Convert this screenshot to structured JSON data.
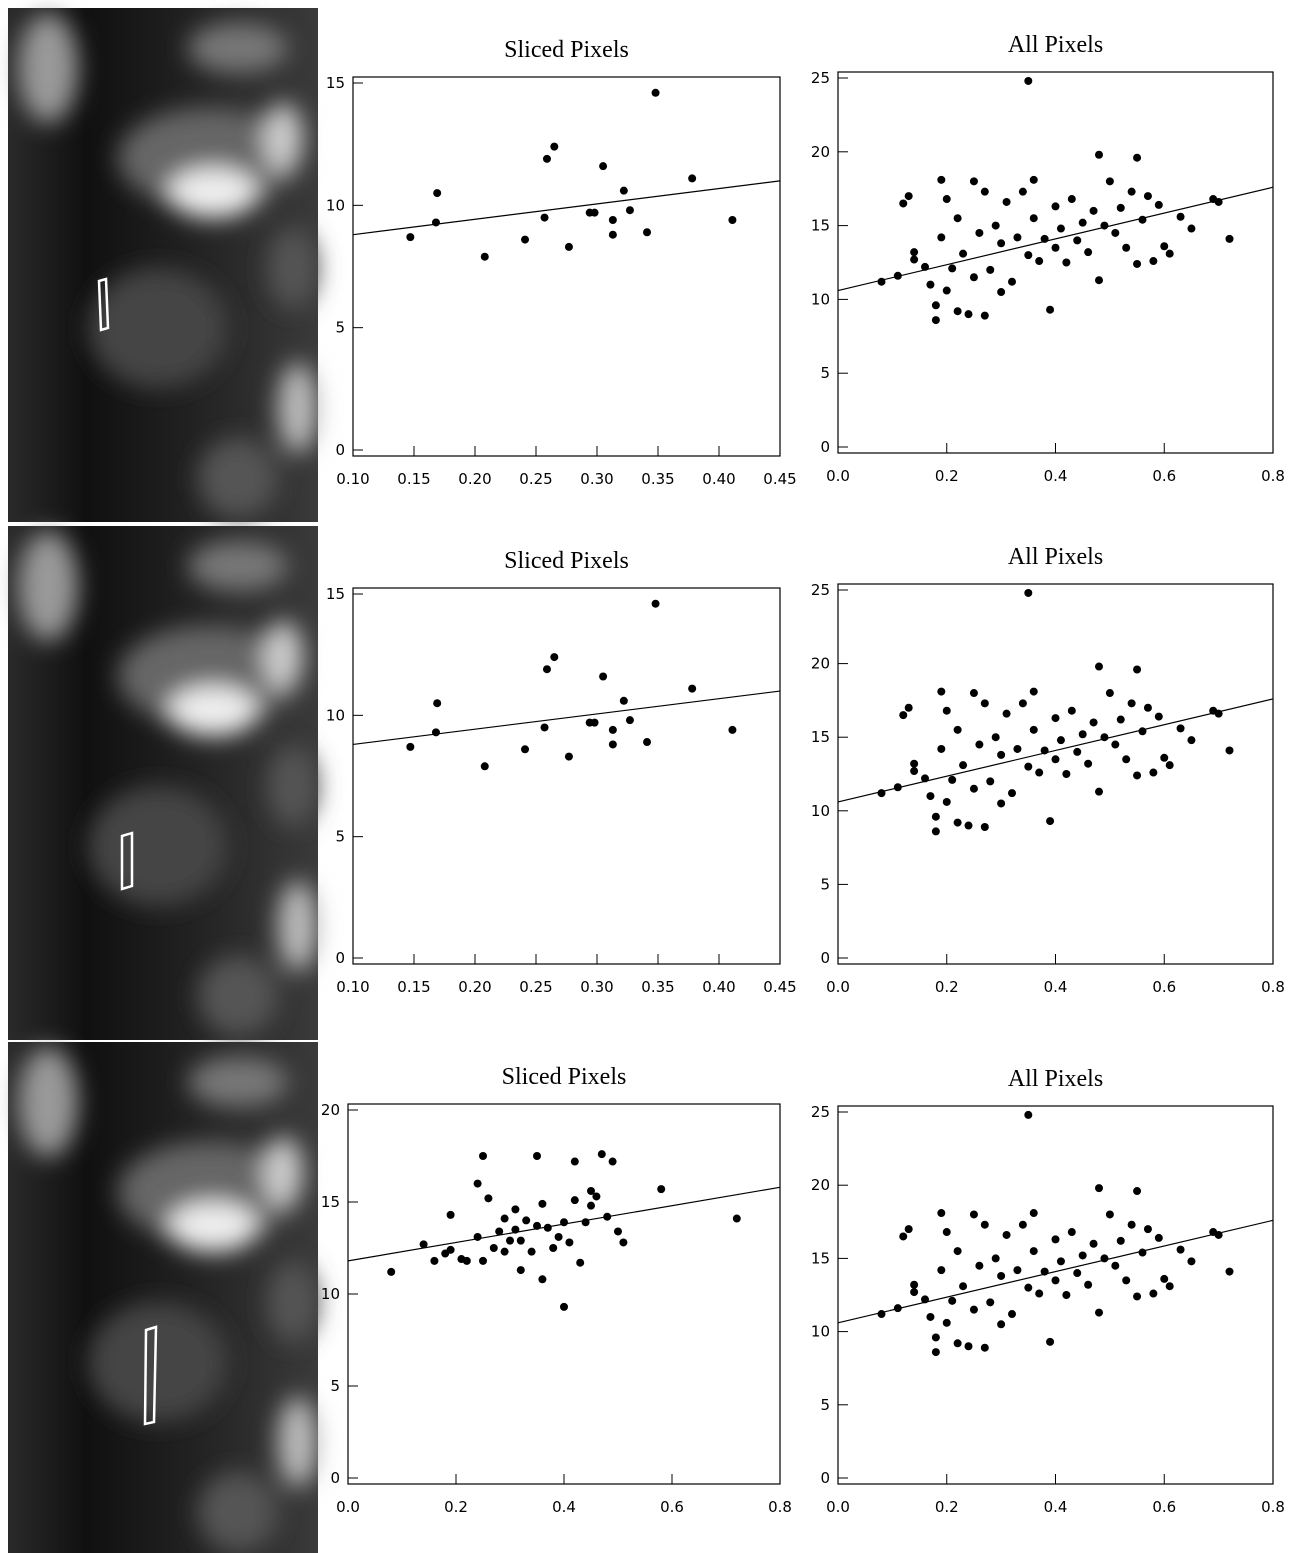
{
  "chart_data": [
    {
      "type": "scatter",
      "title": "Sliced Pixels",
      "xlim": [
        0.1,
        0.45
      ],
      "ylim": [
        0,
        15
      ],
      "xticks": [
        {
          "value": 0.1,
          "label": "0.10"
        },
        0.15,
        {
          "value": 0.2,
          "label": "0.20"
        },
        0.25,
        {
          "value": 0.3,
          "label": "0.30"
        },
        0.35,
        {
          "value": 0.4,
          "label": "0.40"
        },
        0.45
      ],
      "yticks": [
        0,
        5,
        10,
        15
      ],
      "series": [
        {
          "type": "scatter",
          "color": "#000000",
          "x": [
            0.147,
            0.168,
            0.169,
            0.208,
            0.241,
            0.257,
            0.259,
            0.265,
            0.277,
            0.294,
            0.298,
            0.305,
            0.313,
            0.313,
            0.322,
            0.327,
            0.341,
            0.348,
            0.378,
            0.411
          ],
          "values": [
            8.7,
            9.3,
            10.5,
            7.9,
            8.6,
            9.5,
            11.9,
            12.4,
            8.3,
            9.7,
            9.7,
            11.6,
            8.8,
            9.4,
            10.6,
            9.8,
            8.9,
            14.6,
            11.1,
            9.4
          ]
        },
        {
          "type": "line",
          "color": "#000000",
          "x": [
            0.1,
            0.45
          ],
          "values": [
            8.8,
            11.0
          ]
        }
      ]
    },
    {
      "type": "scatter",
      "title": "All Pixels",
      "xlim": [
        0,
        0.8
      ],
      "ylim": [
        0,
        25
      ],
      "xticks": [
        {
          "value": 0,
          "label": "0.0"
        },
        0.2,
        0.4,
        0.6,
        0.8
      ],
      "yticks": [
        0,
        5,
        10,
        15,
        20,
        25
      ],
      "series": [
        {
          "type": "scatter",
          "color": "#000000",
          "x": [
            0.08,
            0.11,
            0.12,
            0.13,
            0.14,
            0.14,
            0.16,
            0.17,
            0.18,
            0.18,
            0.19,
            0.19,
            0.2,
            0.2,
            0.21,
            0.22,
            0.22,
            0.23,
            0.24,
            0.25,
            0.25,
            0.26,
            0.27,
            0.27,
            0.28,
            0.29,
            0.3,
            0.3,
            0.31,
            0.32,
            0.33,
            0.34,
            0.35,
            0.35,
            0.36,
            0.36,
            0.37,
            0.38,
            0.39,
            0.4,
            0.4,
            0.41,
            0.42,
            0.43,
            0.44,
            0.45,
            0.46,
            0.47,
            0.48,
            0.48,
            0.49,
            0.5,
            0.51,
            0.52,
            0.53,
            0.54,
            0.55,
            0.55,
            0.56,
            0.57,
            0.58,
            0.59,
            0.6,
            0.61,
            0.63,
            0.65,
            0.69,
            0.7,
            0.72
          ],
          "values": [
            11.2,
            11.6,
            16.5,
            17.0,
            13.2,
            12.7,
            12.2,
            11.0,
            9.6,
            8.6,
            18.1,
            14.2,
            10.6,
            16.8,
            12.1,
            9.2,
            15.5,
            13.1,
            9.0,
            18.0,
            11.5,
            14.5,
            8.9,
            17.3,
            12.0,
            15.0,
            10.5,
            13.8,
            16.6,
            11.2,
            14.2,
            17.3,
            24.8,
            13.0,
            18.1,
            15.5,
            12.6,
            14.1,
            9.3,
            16.3,
            13.5,
            14.8,
            12.5,
            16.8,
            14.0,
            15.2,
            13.2,
            16.0,
            19.8,
            11.3,
            15.0,
            18.0,
            14.5,
            16.2,
            13.5,
            17.3,
            19.6,
            12.4,
            15.4,
            17.0,
            12.6,
            16.4,
            13.6,
            13.1,
            15.6,
            14.8,
            16.8,
            16.6,
            14.1
          ]
        },
        {
          "type": "line",
          "color": "#000000",
          "x": [
            0,
            0.8
          ],
          "values": [
            10.6,
            17.6
          ]
        }
      ]
    },
    {
      "type": "scatter",
      "title": "Sliced Pixels",
      "xlim": [
        0.1,
        0.45
      ],
      "ylim": [
        0,
        15
      ],
      "xticks": [
        {
          "value": 0.1,
          "label": "0.10"
        },
        0.15,
        {
          "value": 0.2,
          "label": "0.20"
        },
        0.25,
        {
          "value": 0.3,
          "label": "0.30"
        },
        0.35,
        {
          "value": 0.4,
          "label": "0.40"
        },
        0.45
      ],
      "yticks": [
        0,
        5,
        10,
        15
      ],
      "series": [
        {
          "type": "scatter",
          "color": "#000000",
          "x": [
            0.147,
            0.168,
            0.169,
            0.208,
            0.241,
            0.257,
            0.259,
            0.265,
            0.277,
            0.294,
            0.298,
            0.305,
            0.313,
            0.313,
            0.322,
            0.327,
            0.341,
            0.348,
            0.378,
            0.411
          ],
          "values": [
            8.7,
            9.3,
            10.5,
            7.9,
            8.6,
            9.5,
            11.9,
            12.4,
            8.3,
            9.7,
            9.7,
            11.6,
            8.8,
            9.4,
            10.6,
            9.8,
            8.9,
            14.6,
            11.1,
            9.4
          ]
        },
        {
          "type": "line",
          "color": "#000000",
          "x": [
            0.1,
            0.45
          ],
          "values": [
            8.8,
            11.0
          ]
        }
      ]
    },
    {
      "type": "scatter",
      "title": "All Pixels",
      "xlim": [
        0,
        0.8
      ],
      "ylim": [
        0,
        25
      ],
      "xticks": [
        {
          "value": 0,
          "label": "0.0"
        },
        0.2,
        0.4,
        0.6,
        0.8
      ],
      "yticks": [
        0,
        5,
        10,
        15,
        20,
        25
      ],
      "series": [
        {
          "type": "scatter",
          "color": "#000000",
          "x": [
            0.08,
            0.11,
            0.12,
            0.13,
            0.14,
            0.14,
            0.16,
            0.17,
            0.18,
            0.18,
            0.19,
            0.19,
            0.2,
            0.2,
            0.21,
            0.22,
            0.22,
            0.23,
            0.24,
            0.25,
            0.25,
            0.26,
            0.27,
            0.27,
            0.28,
            0.29,
            0.3,
            0.3,
            0.31,
            0.32,
            0.33,
            0.34,
            0.35,
            0.35,
            0.36,
            0.36,
            0.37,
            0.38,
            0.39,
            0.4,
            0.4,
            0.41,
            0.42,
            0.43,
            0.44,
            0.45,
            0.46,
            0.47,
            0.48,
            0.48,
            0.49,
            0.5,
            0.51,
            0.52,
            0.53,
            0.54,
            0.55,
            0.55,
            0.56,
            0.57,
            0.58,
            0.59,
            0.6,
            0.61,
            0.63,
            0.65,
            0.69,
            0.7,
            0.72
          ],
          "values": [
            11.2,
            11.6,
            16.5,
            17.0,
            13.2,
            12.7,
            12.2,
            11.0,
            9.6,
            8.6,
            18.1,
            14.2,
            10.6,
            16.8,
            12.1,
            9.2,
            15.5,
            13.1,
            9.0,
            18.0,
            11.5,
            14.5,
            8.9,
            17.3,
            12.0,
            15.0,
            10.5,
            13.8,
            16.6,
            11.2,
            14.2,
            17.3,
            24.8,
            13.0,
            18.1,
            15.5,
            12.6,
            14.1,
            9.3,
            16.3,
            13.5,
            14.8,
            12.5,
            16.8,
            14.0,
            15.2,
            13.2,
            16.0,
            19.8,
            11.3,
            15.0,
            18.0,
            14.5,
            16.2,
            13.5,
            17.3,
            19.6,
            12.4,
            15.4,
            17.0,
            12.6,
            16.4,
            13.6,
            13.1,
            15.6,
            14.8,
            16.8,
            16.6,
            14.1
          ]
        },
        {
          "type": "line",
          "color": "#000000",
          "x": [
            0,
            0.8
          ],
          "values": [
            10.6,
            17.6
          ]
        }
      ]
    },
    {
      "type": "scatter",
      "title": "Sliced Pixels",
      "xlim": [
        0,
        0.8
      ],
      "ylim": [
        0,
        20
      ],
      "xticks": [
        {
          "value": 0,
          "label": "0.0"
        },
        0.2,
        0.4,
        0.6,
        0.8
      ],
      "yticks": [
        0,
        5,
        10,
        15,
        20
      ],
      "series": [
        {
          "type": "scatter",
          "color": "#000000",
          "x": [
            0.08,
            0.14,
            0.16,
            0.18,
            0.19,
            0.19,
            0.21,
            0.22,
            0.24,
            0.24,
            0.25,
            0.25,
            0.26,
            0.27,
            0.28,
            0.29,
            0.29,
            0.3,
            0.31,
            0.31,
            0.32,
            0.32,
            0.33,
            0.34,
            0.35,
            0.35,
            0.36,
            0.36,
            0.37,
            0.38,
            0.39,
            0.4,
            0.4,
            0.41,
            0.42,
            0.42,
            0.43,
            0.44,
            0.45,
            0.45,
            0.46,
            0.47,
            0.48,
            0.49,
            0.5,
            0.51,
            0.58,
            0.72
          ],
          "values": [
            11.2,
            12.7,
            11.8,
            12.2,
            14.3,
            12.4,
            11.9,
            11.8,
            16.0,
            13.1,
            17.5,
            11.8,
            15.2,
            12.5,
            13.4,
            12.3,
            14.1,
            12.9,
            14.6,
            13.5,
            12.9,
            11.3,
            14.0,
            12.3,
            17.5,
            13.7,
            10.8,
            14.9,
            13.6,
            12.5,
            13.1,
            9.3,
            13.9,
            12.8,
            17.2,
            15.1,
            11.7,
            13.9,
            14.8,
            15.6,
            15.3,
            17.6,
            14.2,
            17.2,
            13.4,
            12.8,
            15.7,
            14.1
          ]
        },
        {
          "type": "line",
          "color": "#000000",
          "x": [
            0,
            0.8
          ],
          "values": [
            11.8,
            15.8
          ]
        }
      ]
    },
    {
      "type": "scatter",
      "title": "All Pixels",
      "xlim": [
        0,
        0.8
      ],
      "ylim": [
        0,
        25
      ],
      "xticks": [
        {
          "value": 0,
          "label": "0.0"
        },
        0.2,
        0.4,
        0.6,
        0.8
      ],
      "yticks": [
        0,
        5,
        10,
        15,
        20,
        25
      ],
      "series": [
        {
          "type": "scatter",
          "color": "#000000",
          "x": [
            0.08,
            0.11,
            0.12,
            0.13,
            0.14,
            0.14,
            0.16,
            0.17,
            0.18,
            0.18,
            0.19,
            0.19,
            0.2,
            0.2,
            0.21,
            0.22,
            0.22,
            0.23,
            0.24,
            0.25,
            0.25,
            0.26,
            0.27,
            0.27,
            0.28,
            0.29,
            0.3,
            0.3,
            0.31,
            0.32,
            0.33,
            0.34,
            0.35,
            0.35,
            0.36,
            0.36,
            0.37,
            0.38,
            0.39,
            0.4,
            0.4,
            0.41,
            0.42,
            0.43,
            0.44,
            0.45,
            0.46,
            0.47,
            0.48,
            0.48,
            0.49,
            0.5,
            0.51,
            0.52,
            0.53,
            0.54,
            0.55,
            0.55,
            0.56,
            0.57,
            0.58,
            0.59,
            0.6,
            0.61,
            0.63,
            0.65,
            0.69,
            0.7,
            0.72
          ],
          "values": [
            11.2,
            11.6,
            16.5,
            17.0,
            13.2,
            12.7,
            12.2,
            11.0,
            9.6,
            8.6,
            18.1,
            14.2,
            10.6,
            16.8,
            12.1,
            9.2,
            15.5,
            13.1,
            9.0,
            18.0,
            11.5,
            14.5,
            8.9,
            17.3,
            12.0,
            15.0,
            10.5,
            13.8,
            16.6,
            11.2,
            14.2,
            17.3,
            24.8,
            13.0,
            18.1,
            15.5,
            12.6,
            14.1,
            9.3,
            16.3,
            13.5,
            14.8,
            12.5,
            16.8,
            14.0,
            15.2,
            13.2,
            16.0,
            19.8,
            11.3,
            15.0,
            18.0,
            14.5,
            16.2,
            13.5,
            17.3,
            19.6,
            12.4,
            15.4,
            17.0,
            12.6,
            16.4,
            13.6,
            13.1,
            15.6,
            14.8,
            16.8,
            16.6,
            14.1
          ]
        },
        {
          "type": "line",
          "color": "#000000",
          "x": [
            0,
            0.8
          ],
          "values": [
            10.6,
            17.6
          ]
        }
      ]
    }
  ]
}
